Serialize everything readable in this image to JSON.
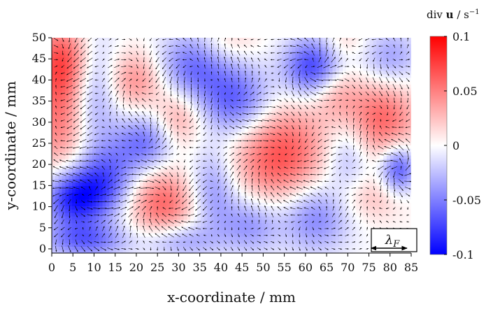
{
  "chart_data": {
    "type": "heatmap",
    "xlabel": "x-coordinate / mm",
    "ylabel": "y-coordinate / mm",
    "xlim": [
      0,
      85
    ],
    "ylim": [
      -1,
      50
    ],
    "xticks": [
      0,
      5,
      10,
      15,
      20,
      25,
      30,
      35,
      40,
      45,
      50,
      55,
      60,
      65,
      70,
      75,
      80,
      85
    ],
    "yticks": [
      0,
      5,
      10,
      15,
      20,
      25,
      30,
      35,
      40,
      45,
      50
    ],
    "colorbar": {
      "title_prefix": "div ",
      "title_bold": "u",
      "title_unit": " / s",
      "title_exp": "−1",
      "range": [
        -0.1,
        0.1
      ],
      "ticks": [
        0.1,
        0.05,
        0,
        -0.05,
        -0.1
      ],
      "tick_labels": [
        "0.1",
        "0.05",
        "0",
        "-0.05",
        "-0.1"
      ],
      "colors": {
        "negative": "#0000ff",
        "zero": "#ffffff",
        "positive": "#ff0000"
      }
    },
    "annotation": {
      "symbol": "λ",
      "subscript": "F",
      "x_range": [
        75.5,
        84
      ]
    },
    "field_blobs": [
      {
        "x": 2,
        "y": 33,
        "value": 0.055,
        "sx": 5,
        "sy": 12
      },
      {
        "x": 3,
        "y": 45,
        "value": 0.045,
        "sx": 5,
        "sy": 6
      },
      {
        "x": 20,
        "y": 40,
        "value": 0.045,
        "sx": 5,
        "sy": 5
      },
      {
        "x": 30,
        "y": 31,
        "value": 0.04,
        "sx": 4,
        "sy": 5
      },
      {
        "x": 26,
        "y": 11,
        "value": 0.06,
        "sx": 6,
        "sy": 6
      },
      {
        "x": 54,
        "y": 22,
        "value": 0.07,
        "sx": 8,
        "sy": 9
      },
      {
        "x": 78,
        "y": 31,
        "value": 0.06,
        "sx": 6,
        "sy": 7
      },
      {
        "x": 67,
        "y": 38,
        "value": 0.035,
        "sx": 4,
        "sy": 5
      },
      {
        "x": 75,
        "y": 12,
        "value": 0.025,
        "sx": 6,
        "sy": 4
      },
      {
        "x": 42,
        "y": 49,
        "value": 0.02,
        "sx": 5,
        "sy": 3
      },
      {
        "x": 69,
        "y": 49,
        "value": 0.02,
        "sx": 4,
        "sy": 3
      },
      {
        "x": 5,
        "y": 12,
        "value": -0.09,
        "sx": 5,
        "sy": 5
      },
      {
        "x": 13,
        "y": 16,
        "value": -0.06,
        "sx": 5,
        "sy": 6
      },
      {
        "x": 8,
        "y": 2,
        "value": -0.055,
        "sx": 7,
        "sy": 3
      },
      {
        "x": 62,
        "y": 43,
        "value": -0.08,
        "sx": 5,
        "sy": 5
      },
      {
        "x": 44,
        "y": 35,
        "value": -0.065,
        "sx": 6,
        "sy": 6
      },
      {
        "x": 82,
        "y": 19,
        "value": -0.07,
        "sx": 3,
        "sy": 4
      },
      {
        "x": 33,
        "y": 43,
        "value": -0.055,
        "sx": 6,
        "sy": 6
      },
      {
        "x": 22,
        "y": 25,
        "value": -0.055,
        "sx": 5,
        "sy": 5
      },
      {
        "x": 10,
        "y": 38,
        "value": -0.045,
        "sx": 4,
        "sy": 10
      },
      {
        "x": 62,
        "y": 8,
        "value": -0.055,
        "sx": 6,
        "sy": 6
      },
      {
        "x": 38,
        "y": 14,
        "value": -0.045,
        "sx": 4,
        "sy": 7
      },
      {
        "x": 80,
        "y": 45,
        "value": -0.04,
        "sx": 5,
        "sy": 5
      },
      {
        "x": 47,
        "y": 6,
        "value": -0.045,
        "sx": 5,
        "sy": 5
      },
      {
        "x": 30,
        "y": 2,
        "value": -0.04,
        "sx": 6,
        "sy": 3
      },
      {
        "x": 70,
        "y": 22,
        "value": -0.035,
        "sx": 4,
        "sy": 6
      }
    ]
  }
}
